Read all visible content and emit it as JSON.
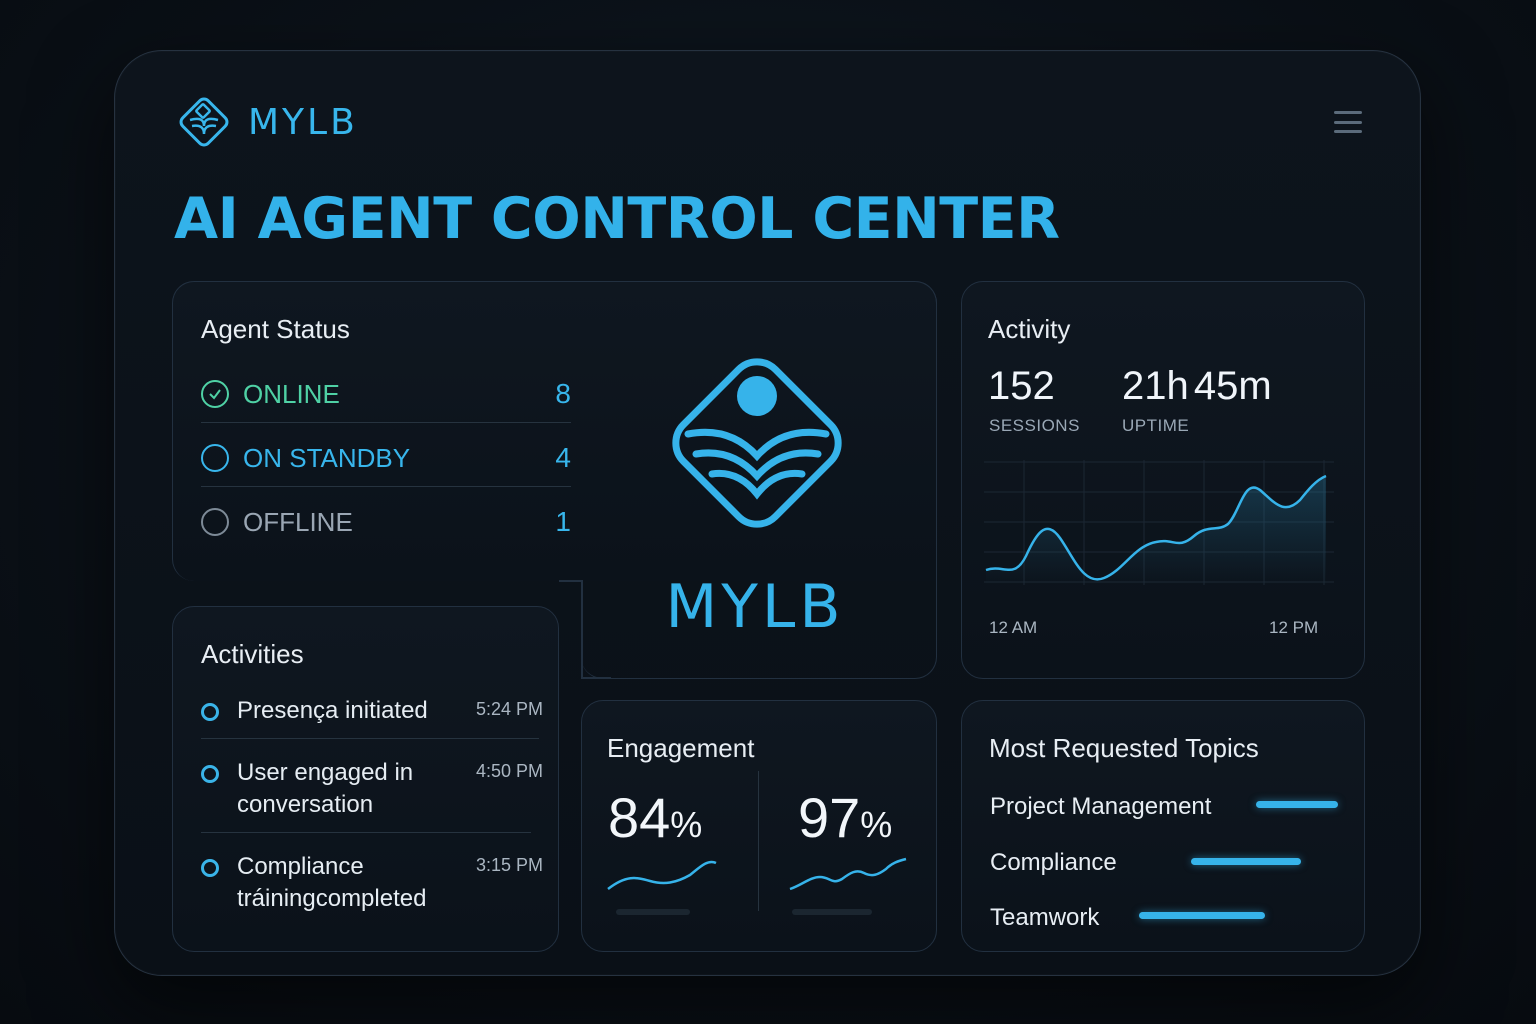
{
  "brand": {
    "name": "MYLB",
    "accent": "#38b6ec"
  },
  "header": {
    "title": "AI AGENT CONTROL CENTER",
    "menu_icon": "hamburger-menu-icon"
  },
  "agent_status": {
    "title": "Agent Status",
    "rows": [
      {
        "label": "ONLINE",
        "count": "8",
        "color": "#4fd1a5",
        "icon": "check-circle-icon"
      },
      {
        "label": "ON STANDBY",
        "count": "4",
        "color": "#38b6ec",
        "icon": "circle-icon"
      },
      {
        "label": "OFFLINE",
        "count": "1",
        "color": "#8a97a5",
        "icon": "circle-icon"
      }
    ]
  },
  "center_logo": {
    "label": "MYLB"
  },
  "activities": {
    "title": "Activities",
    "items": [
      {
        "text": "Presença initiated",
        "time": "5:24 PM"
      },
      {
        "text": "User engaged in conversation",
        "time": "4:50 PM"
      },
      {
        "text": "Compliance tráiningcompleted",
        "time": "3:15 PM"
      }
    ]
  },
  "activity": {
    "title": "Activity",
    "sessions_value": "152",
    "sessions_label": "SESSIONS",
    "uptime_value": "21h 45m",
    "uptime_label": "UPTIME",
    "x_start": "12 AM",
    "x_end": "12 PM"
  },
  "engagement": {
    "title": "Engagement",
    "metrics": [
      {
        "value": "84",
        "unit": "%"
      },
      {
        "value": "97",
        "unit": "%"
      }
    ]
  },
  "topics": {
    "title": "Most Requested Topics",
    "items": [
      {
        "label": "Project Management",
        "level": 1.0
      },
      {
        "label": "Compliance",
        "level": 0.67
      },
      {
        "label": "Teamwork",
        "level": 0.77
      }
    ]
  }
}
